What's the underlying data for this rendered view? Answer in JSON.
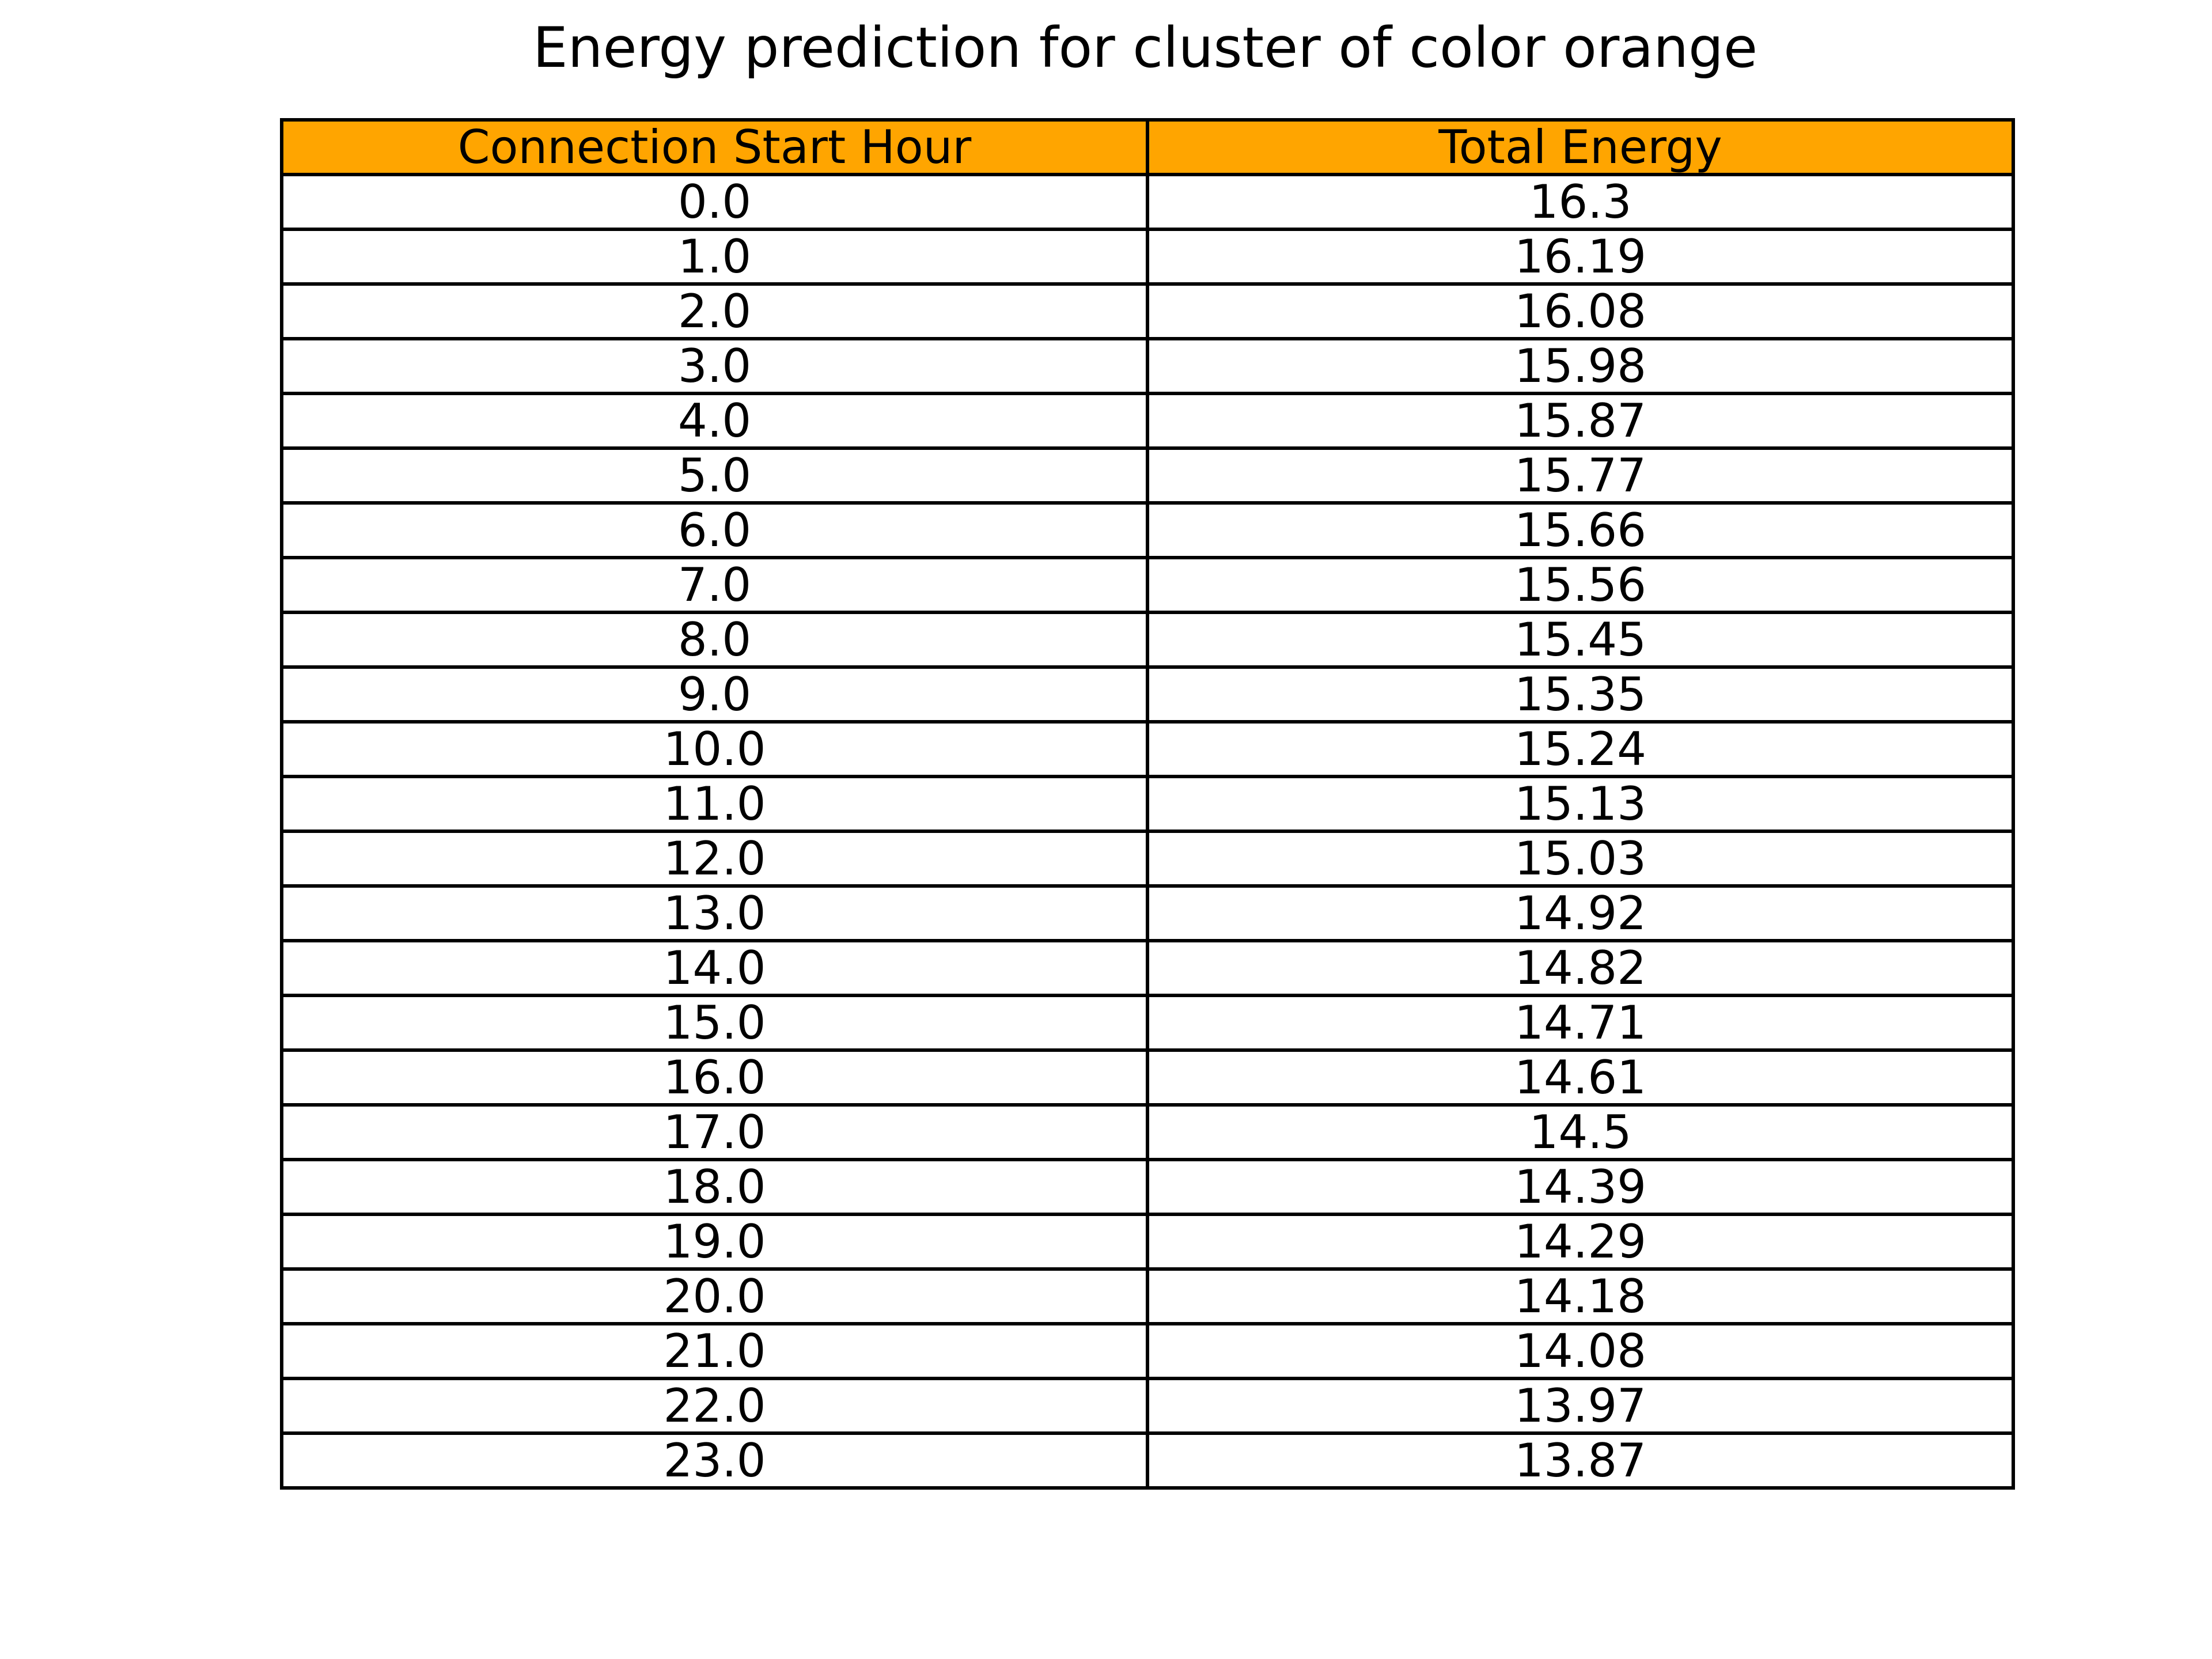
{
  "colors": {
    "header_background": "#ffa500",
    "cell_background": "#ffffff",
    "border": "#000000",
    "text": "#000000"
  },
  "chart_data": {
    "type": "table",
    "title": "Energy prediction for cluster of color orange",
    "columns": [
      "Connection Start Hour",
      "Total Energy"
    ],
    "rows": [
      [
        "0.0",
        "16.3"
      ],
      [
        "1.0",
        "16.19"
      ],
      [
        "2.0",
        "16.08"
      ],
      [
        "3.0",
        "15.98"
      ],
      [
        "4.0",
        "15.87"
      ],
      [
        "5.0",
        "15.77"
      ],
      [
        "6.0",
        "15.66"
      ],
      [
        "7.0",
        "15.56"
      ],
      [
        "8.0",
        "15.45"
      ],
      [
        "9.0",
        "15.35"
      ],
      [
        "10.0",
        "15.24"
      ],
      [
        "11.0",
        "15.13"
      ],
      [
        "12.0",
        "15.03"
      ],
      [
        "13.0",
        "14.92"
      ],
      [
        "14.0",
        "14.82"
      ],
      [
        "15.0",
        "14.71"
      ],
      [
        "16.0",
        "14.61"
      ],
      [
        "17.0",
        "14.5"
      ],
      [
        "18.0",
        "14.39"
      ],
      [
        "19.0",
        "14.29"
      ],
      [
        "20.0",
        "14.18"
      ],
      [
        "21.0",
        "14.08"
      ],
      [
        "22.0",
        "13.97"
      ],
      [
        "23.0",
        "13.87"
      ]
    ]
  }
}
